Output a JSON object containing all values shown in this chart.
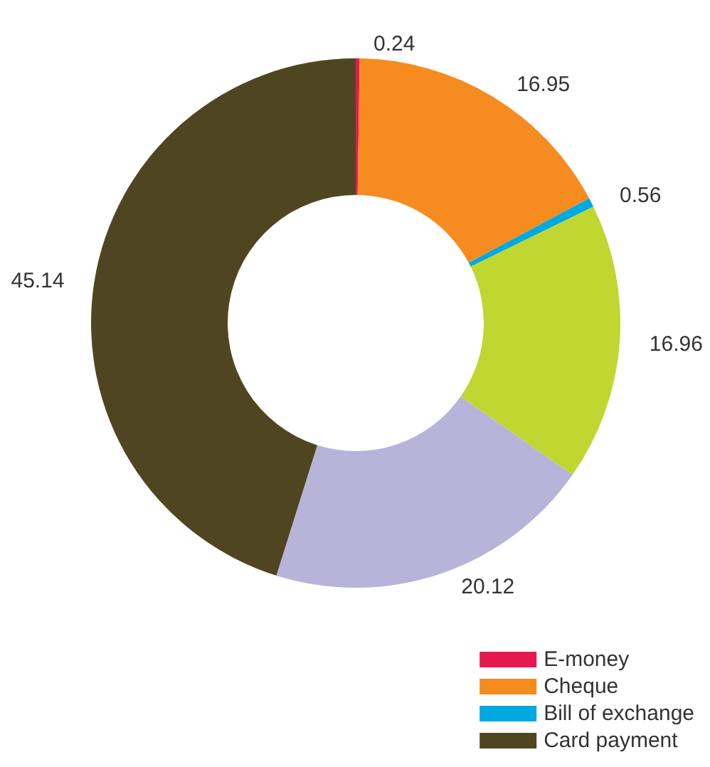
{
  "chart_data": {
    "type": "donut",
    "categories": [
      "E-money",
      "Cheque",
      "Bill of exchange",
      null,
      null,
      "Card payment"
    ],
    "values": [
      0.24,
      16.95,
      0.56,
      16.96,
      20.12,
      45.14
    ],
    "colors": [
      "#e5194f",
      "#f68b1f",
      "#00a9e0",
      "#bfd730",
      "#b8b3d9",
      "#4f4621"
    ],
    "data_labels": true,
    "legend": "bottom right"
  }
}
